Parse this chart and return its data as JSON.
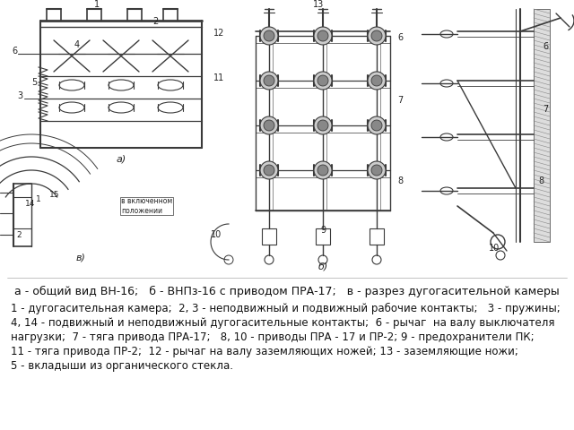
{
  "background_color": "#ffffff",
  "title_line": "а - общий вид ВН-16;   б - ВНПз-16 с приводом ПРА-17;   в - разрез дугогасительной камеры",
  "caption_lines": [
    "1 - дугогасительная камера;  2, 3 - неподвижный и подвижный рабочие контакты;   3 - пружины;",
    "4, 14 - подвижный и неподвижный дугогасительные контакты;  6 - рычаг  на валу выключателя",
    "нагрузки;  7 - тяга привода ПРА-17;   8, 10 - приводы ПРА - 17 и ПР-2; 9 - предохранители ПК;",
    "11 - тяга привода ПР-2;  12 - рычаг на валу заземляющих ножей; 13 - заземляющие ножи;",
    "5 - вкладыши из органического стекла."
  ],
  "title_fontsize": 9.0,
  "caption_fontsize": 8.5,
  "fig_width": 6.4,
  "fig_height": 4.8,
  "dpi": 100,
  "diagram_bg": "#f0f0f0",
  "line_color": "#3a3a3a",
  "label_color": "#222222"
}
